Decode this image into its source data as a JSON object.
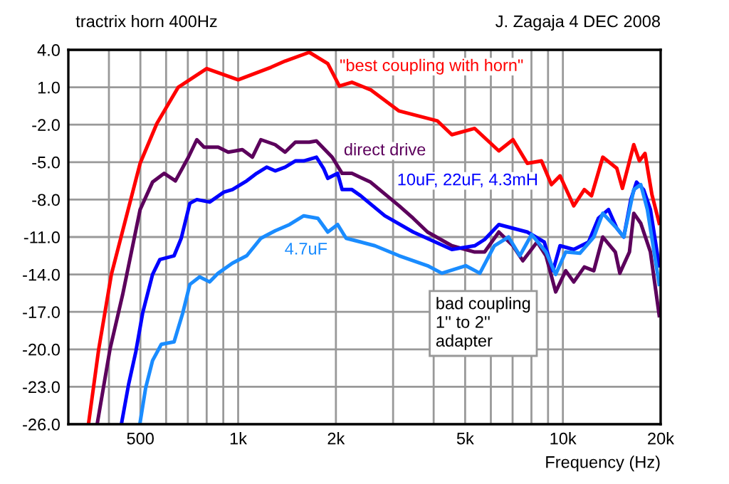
{
  "chart_data": {
    "type": "line",
    "title": "tractrix horn 400Hz",
    "subtitle": "J. Zagaja 4 DEC 2008",
    "xlabel": "Frequency (Hz)",
    "annotations": [
      "bad coupling\n1'' to 2''\nadapter"
    ],
    "log": "x",
    "grid": true,
    "legend": false,
    "marker": "none",
    "line_style": "solid",
    "xlim": [
      300,
      20000
    ],
    "xticks": [
      {
        "value": 400,
        "label": null
      },
      {
        "value": 500,
        "label": "500"
      },
      {
        "value": 600,
        "label": null
      },
      {
        "value": 700,
        "label": null
      },
      {
        "value": 800,
        "label": null
      },
      {
        "value": 900,
        "label": null
      },
      {
        "value": 1000,
        "label": "1k"
      },
      {
        "value": 2000,
        "label": "2k"
      },
      {
        "value": 3000,
        "label": null
      },
      {
        "value": 4000,
        "label": null
      },
      {
        "value": 5000,
        "label": "5k"
      },
      {
        "value": 6000,
        "label": null
      },
      {
        "value": 7000,
        "label": null
      },
      {
        "value": 8000,
        "label": null
      },
      {
        "value": 9000,
        "label": null
      },
      {
        "value": 10000,
        "label": "10k"
      },
      {
        "value": 20000,
        "label": "20k"
      }
    ],
    "ylim": [
      -26,
      4
    ],
    "yticks": [
      {
        "value": 4,
        "label": "4.0"
      },
      {
        "value": 1,
        "label": "1.0"
      },
      {
        "value": -2,
        "label": "-2.0"
      },
      {
        "value": -5,
        "label": "-5.0"
      },
      {
        "value": -8,
        "label": "-8.0"
      },
      {
        "value": -11,
        "label": "-11.0"
      },
      {
        "value": -14,
        "label": "-14.0"
      },
      {
        "value": -17,
        "label": "-17.0"
      },
      {
        "value": -20,
        "label": "-20.0"
      },
      {
        "value": -23,
        "label": "-23.0"
      },
      {
        "value": -26,
        "label": "-26.0"
      }
    ],
    "series": [
      {
        "name": "\"best coupling with horn\"",
        "color": "#ff0000",
        "x": [
          346,
          372,
          407,
          499,
          562,
          654,
          800,
          1000,
          1262,
          1395,
          1656,
          1888,
          2050,
          2240,
          2556,
          3130,
          4110,
          4550,
          5350,
          6350,
          7020,
          7770,
          8590,
          9220,
          9800,
          10800,
          11640,
          12250,
          13270,
          14660,
          15250,
          16530,
          17200,
          17900,
          18800,
          19800
        ],
        "values": [
          -26,
          -20,
          -14,
          -5.1,
          -1.9,
          1.0,
          2.5,
          1.6,
          2.6,
          3.1,
          3.8,
          2.9,
          1.1,
          1.4,
          0.8,
          -0.9,
          -1.7,
          -2.8,
          -2.3,
          -4.1,
          -3.2,
          -5.1,
          -4.9,
          -6.8,
          -6.1,
          -8.5,
          -7.2,
          -7.7,
          -4.6,
          -5.5,
          -7.1,
          -3.6,
          -4.9,
          -4.3,
          -7.6,
          -9.9
        ]
      },
      {
        "name": "direct drive",
        "color": "#5c005c",
        "x": [
          368,
          403,
          441,
          499,
          545,
          592,
          641,
          703,
          746,
          785,
          868,
          932,
          1030,
          1106,
          1175,
          1300,
          1395,
          1500,
          1656,
          1742,
          1947,
          2090,
          2240,
          2556,
          3130,
          3460,
          3830,
          4550,
          5350,
          5740,
          6350,
          7020,
          7530,
          8330,
          8870,
          9500,
          10200,
          10800,
          11640,
          12450,
          13270,
          14500,
          14970,
          16030,
          16530,
          17370,
          18600,
          19800
        ],
        "values": [
          -26,
          -20,
          -15.6,
          -8.8,
          -6.6,
          -5.9,
          -6.5,
          -4.6,
          -3.2,
          -3.8,
          -3.8,
          -4.2,
          -4.0,
          -4.6,
          -3.2,
          -3.6,
          -4.2,
          -3.4,
          -3.4,
          -3.3,
          -4.6,
          -5.9,
          -5.9,
          -6.6,
          -8.5,
          -9.5,
          -10.6,
          -11.7,
          -12.2,
          -12.2,
          -10.6,
          -11.7,
          -12.9,
          -11.4,
          -12.5,
          -15.4,
          -13.7,
          -14.6,
          -13.4,
          -13.7,
          -11.0,
          -12.2,
          -13.9,
          -12.2,
          -9.1,
          -9.9,
          -12.2,
          -17.3
        ]
      },
      {
        "name": "10uF, 22uF, 4.3mH",
        "color": "#0000ff",
        "x": [
          437,
          460,
          484,
          508,
          545,
          574,
          635,
          668,
          710,
          746,
          817,
          904,
          960,
          1063,
          1140,
          1224,
          1300,
          1395,
          1500,
          1592,
          1742,
          1832,
          1888,
          2025,
          2090,
          2240,
          2385,
          2829,
          3460,
          4550,
          5350,
          5740,
          6350,
          7020,
          7770,
          8760,
          9320,
          9800,
          10800,
          12000,
          12860,
          13820,
          14660,
          15400,
          16190,
          16860,
          17720,
          18600,
          19800
        ],
        "values": [
          -26,
          -22.8,
          -20.2,
          -17.1,
          -14.0,
          -12.8,
          -12.5,
          -11.1,
          -8.3,
          -8.0,
          -8.2,
          -7.4,
          -7.2,
          -6.5,
          -5.9,
          -5.4,
          -5.7,
          -5.4,
          -4.9,
          -4.9,
          -4.6,
          -5.5,
          -6.3,
          -5.9,
          -7.2,
          -7.2,
          -7.7,
          -9.3,
          -10.6,
          -12.0,
          -11.7,
          -11.2,
          -10.0,
          -10.3,
          -10.6,
          -11.4,
          -13.7,
          -11.7,
          -12.0,
          -11.4,
          -9.5,
          -8.8,
          -10.3,
          -11.0,
          -8.0,
          -6.6,
          -7.2,
          -8.8,
          -13.3
        ]
      },
      {
        "name": "4.7uF",
        "color": "#1a8cff",
        "x": [
          498,
          519,
          545,
          580,
          635,
          675,
          710,
          761,
          817,
          868,
          960,
          1063,
          1175,
          1300,
          1440,
          1592,
          1760,
          1888,
          2025,
          2150,
          2385,
          2636,
          3130,
          3830,
          4240,
          5020,
          5550,
          6150,
          6800,
          7370,
          8010,
          8870,
          9500,
          10200,
          11280,
          12450,
          13270,
          14660,
          15400,
          16530,
          17370,
          18200,
          19800
        ],
        "values": [
          -26,
          -23.1,
          -20.9,
          -19.6,
          -19.4,
          -17.1,
          -14.8,
          -14.2,
          -14.6,
          -13.9,
          -13.1,
          -12.5,
          -11.1,
          -10.5,
          -10.0,
          -9.3,
          -9.5,
          -10.6,
          -10.0,
          -11.1,
          -11.4,
          -11.7,
          -12.5,
          -13.3,
          -13.9,
          -13.3,
          -13.9,
          -11.7,
          -11.0,
          -12.5,
          -10.8,
          -12.2,
          -14.0,
          -12.2,
          -12.3,
          -11.0,
          -9.1,
          -10.3,
          -11.0,
          -7.2,
          -6.8,
          -8.8,
          -14.8
        ]
      }
    ]
  }
}
